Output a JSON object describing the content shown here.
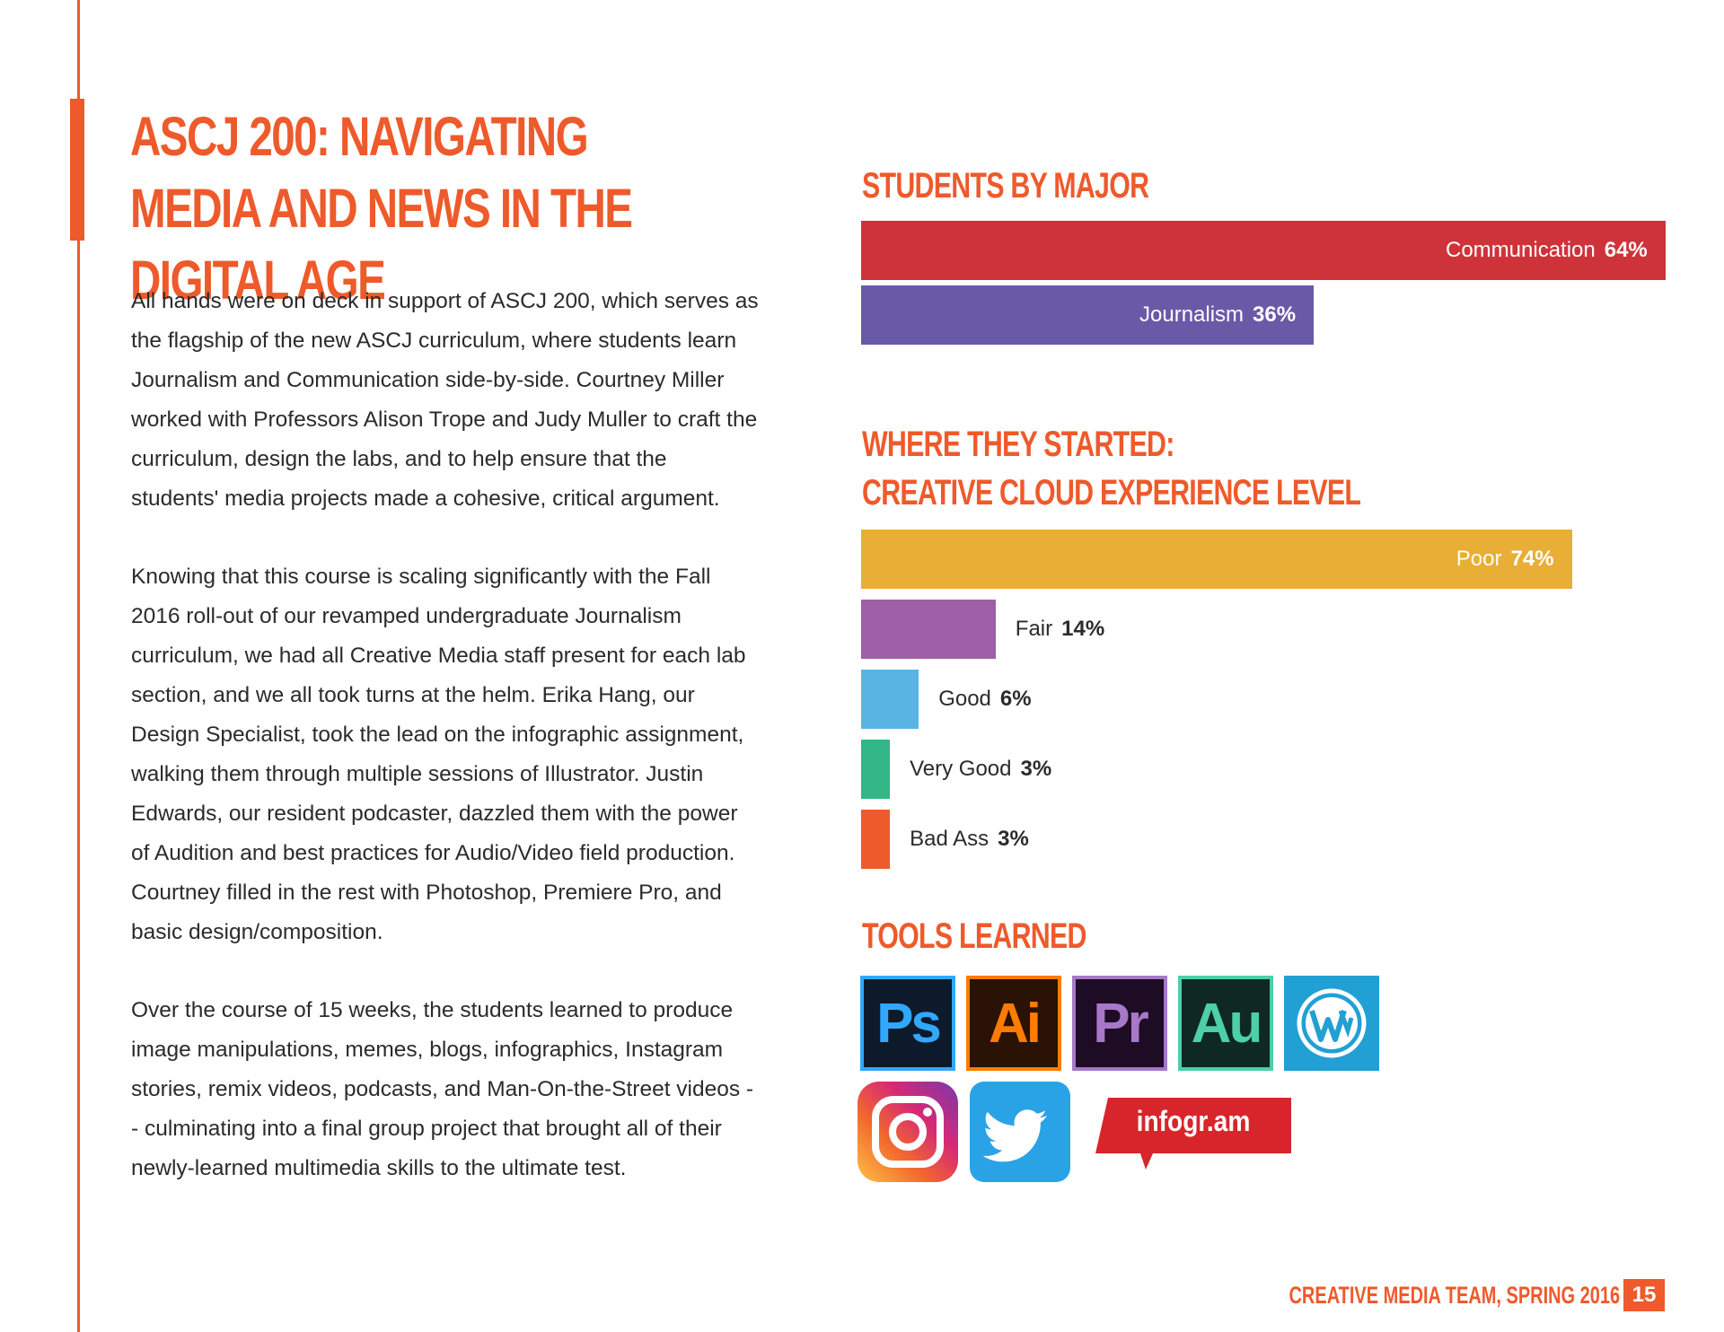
{
  "page": {
    "title": "ASCJ 200: NAVIGATING MEDIA AND NEWS IN THE DIGITAL AGE",
    "paragraphs": [
      "All hands were on deck in support of ASCJ 200, which serves as the flagship of the new ASCJ curriculum, where students learn Journalism and Communication side-by-side. Courtney Miller worked with Professors Alison Trope and Judy Muller to craft the curriculum, design the labs, and to help ensure that the students' media projects made a cohesive, critical argument.",
      "Knowing that this course is scaling significantly with the Fall 2016 roll-out of our revamped undergraduate Journalism curriculum, we had all Creative Media staff present for each lab section, and we all took turns at the helm. Erika Hang, our Design Specialist, took the lead on the infographic assignment, walking them through multiple sessions of Illustrator. Justin Edwards, our resident podcaster, dazzled them with the power of Audition and best practices for Audio/Video field production. Courtney filled in the rest with Photoshop, Premiere Pro, and basic design/composition.",
      "Over the course of 15 weeks, the students learned to produce image manipulations, memes, blogs, infographics, Instagram stories, remix videos, podcasts, and Man-On-the-Street videos -- culminating into a final group project that brought all of their newly-learned multimedia skills to the ultimate test."
    ]
  },
  "chart_data": [
    {
      "type": "bar",
      "orientation": "horizontal",
      "title": "STUDENTS BY MAJOR",
      "categories": [
        "Communication",
        "Journalism"
      ],
      "values": [
        64,
        36
      ],
      "labels": [
        "64%",
        "36%"
      ],
      "colors": [
        "#cf333a",
        "#695aa8"
      ],
      "unit": "%"
    },
    {
      "type": "bar",
      "orientation": "horizontal",
      "title_lines": [
        "WHERE THEY STARTED:",
        "CREATIVE CLOUD EXPERIENCE LEVEL"
      ],
      "categories": [
        "Poor",
        "Fair",
        "Good",
        "Very Good",
        "Bad Ass"
      ],
      "values": [
        74,
        14,
        6,
        3,
        3
      ],
      "labels": [
        "74%",
        "14%",
        "6%",
        "3%",
        "3%"
      ],
      "colors": [
        "#e8ae35",
        "#9d5fa6",
        "#5ab4e3",
        "#32b685",
        "#ee5a2b"
      ],
      "unit": "%"
    }
  ],
  "tools": {
    "title": "TOOLS LEARNED",
    "items": [
      {
        "name": "photoshop",
        "label": "Ps",
        "bg": "#0c1a2b",
        "fg": "#31a8ff",
        "border": "#31a8ff"
      },
      {
        "name": "illustrator",
        "label": "Ai",
        "bg": "#2a1204",
        "fg": "#ff7c00",
        "border": "#ff7c00"
      },
      {
        "name": "premiere",
        "label": "Pr",
        "bg": "#1e0b24",
        "fg": "#a778c7",
        "border": "#a778c7"
      },
      {
        "name": "audition",
        "label": "Au",
        "bg": "#0f2822",
        "fg": "#4dcfa9",
        "border": "#4dcfa9"
      },
      {
        "name": "wordpress",
        "label": "",
        "bg": "#21a0d4",
        "fg": "#ffffff",
        "border": "#21a0d4"
      },
      {
        "name": "instagram",
        "label": ""
      },
      {
        "name": "twitter",
        "label": ""
      },
      {
        "name": "infogram",
        "label": "infogr.am"
      }
    ]
  },
  "footer": {
    "text": "CREATIVE MEDIA TEAM, SPRING 2016",
    "page_number": "15"
  },
  "colors": {
    "accent": "#ee5a2b",
    "infogram_red": "#d8252b"
  }
}
